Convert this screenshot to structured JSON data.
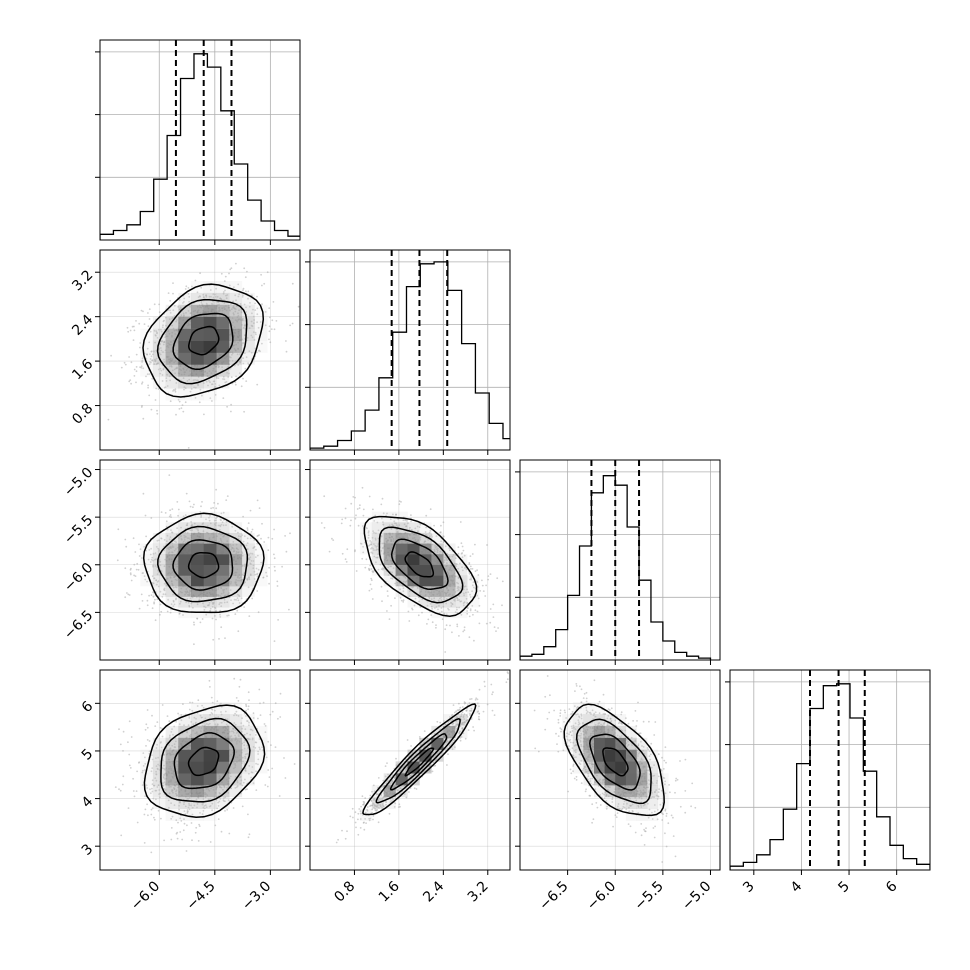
{
  "chart_data": {
    "type": "scatter",
    "kind": "corner-plot",
    "grid": true,
    "histogram_quantiles": [
      0.16,
      0.5,
      0.84
    ],
    "contour_levels": 4,
    "colors": {
      "scatter": "#aaaaaa",
      "density_dark": "#000000",
      "density_light": "#ffffff",
      "contour": "#000000",
      "grid": "#b0b0b0",
      "quantile_line": "#000000"
    },
    "params": [
      {
        "range": [
          -7.6,
          -2.2
        ],
        "ticks": [
          -6.0,
          -4.5,
          -3.0
        ],
        "tick_labels": [
          "−6.0",
          "−4.5",
          "−3.0"
        ],
        "median": -4.8,
        "q16": -5.55,
        "q84": -4.05
      },
      {
        "range": [
          0.0,
          3.6
        ],
        "ticks": [
          0.8,
          1.6,
          2.4,
          3.2
        ],
        "tick_labels": [
          "0.8",
          "1.6",
          "2.4",
          "3.2"
        ],
        "median": 1.97,
        "q16": 1.47,
        "q84": 2.47
      },
      {
        "range": [
          -7.0,
          -4.9
        ],
        "ticks": [
          -6.5,
          -6.0,
          -5.5,
          -5.0
        ],
        "tick_labels": [
          "−6.5",
          "−6.0",
          "−5.5",
          "−5.0"
        ],
        "median": -6.0,
        "q16": -6.25,
        "q84": -5.75
      },
      {
        "range": [
          2.5,
          6.7
        ],
        "ticks": [
          3,
          4,
          5,
          6
        ],
        "tick_labels": [
          "3",
          "4",
          "5",
          "6"
        ],
        "median": 4.78,
        "q16": 4.18,
        "q84": 5.33
      }
    ],
    "histograms": [
      [
        0.03,
        0.05,
        0.08,
        0.15,
        0.32,
        0.55,
        0.85,
        0.98,
        0.91,
        0.68,
        0.4,
        0.21,
        0.1,
        0.05,
        0.02,
        0.01
      ],
      [
        0.01,
        0.02,
        0.05,
        0.1,
        0.21,
        0.38,
        0.62,
        0.86,
        0.98,
        0.99,
        0.84,
        0.56,
        0.3,
        0.14,
        0.06,
        0.02
      ],
      [
        0.02,
        0.03,
        0.07,
        0.16,
        0.34,
        0.6,
        0.88,
        0.97,
        0.92,
        0.7,
        0.42,
        0.2,
        0.1,
        0.04,
        0.02,
        0.01
      ],
      [
        0.02,
        0.04,
        0.08,
        0.16,
        0.32,
        0.56,
        0.85,
        0.97,
        0.98,
        0.8,
        0.52,
        0.28,
        0.13,
        0.06,
        0.03,
        0.01
      ]
    ],
    "histogram_bins_approx": 20,
    "pairs": [
      {
        "row": 1,
        "col": 0,
        "mean": [
          -4.8,
          1.97
        ],
        "sd": [
          0.8,
          0.5
        ],
        "rho": 0.25
      },
      {
        "row": 2,
        "col": 0,
        "mean": [
          -4.8,
          -6.0
        ],
        "sd": [
          0.8,
          0.26
        ],
        "rho": 0.0
      },
      {
        "row": 2,
        "col": 1,
        "mean": [
          1.97,
          -6.0
        ],
        "sd": [
          0.5,
          0.26
        ],
        "rho": -0.55
      },
      {
        "row": 3,
        "col": 0,
        "mean": [
          -4.8,
          4.78
        ],
        "sd": [
          0.8,
          0.58
        ],
        "rho": 0.25
      },
      {
        "row": 3,
        "col": 1,
        "mean": [
          1.97,
          4.78
        ],
        "sd": [
          0.5,
          0.58
        ],
        "rho": 0.95
      },
      {
        "row": 3,
        "col": 2,
        "mean": [
          -6.0,
          4.78
        ],
        "sd": [
          0.26,
          0.58
        ],
        "rho": -0.55
      }
    ]
  }
}
